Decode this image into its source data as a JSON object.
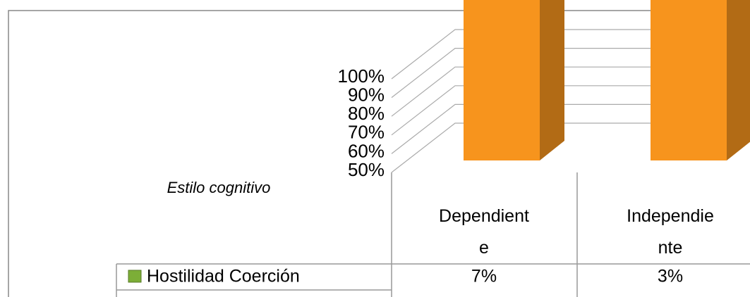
{
  "chart_data": {
    "type": "bar3d_stacked",
    "x_label": "Estilo cognitivo",
    "categories": [
      "Dependiente",
      "Independiente"
    ],
    "series": [
      {
        "color": "#f7941d",
        "values": [
          93,
          97
        ]
      },
      {
        "name": "Hostilidad Coerción",
        "color": "#7cae37",
        "values": [
          7,
          3
        ],
        "value_labels": [
          "7%",
          "3%"
        ]
      }
    ],
    "ylim": [
      50,
      100
    ],
    "yticks": [
      {
        "value": 50,
        "label": "50%"
      },
      {
        "value": 60,
        "label": "60%"
      },
      {
        "value": 70,
        "label": "70%"
      },
      {
        "value": 80,
        "label": "80%"
      },
      {
        "value": 90,
        "label": "90%"
      },
      {
        "value": 100,
        "label": "100%"
      }
    ],
    "grid": true
  }
}
